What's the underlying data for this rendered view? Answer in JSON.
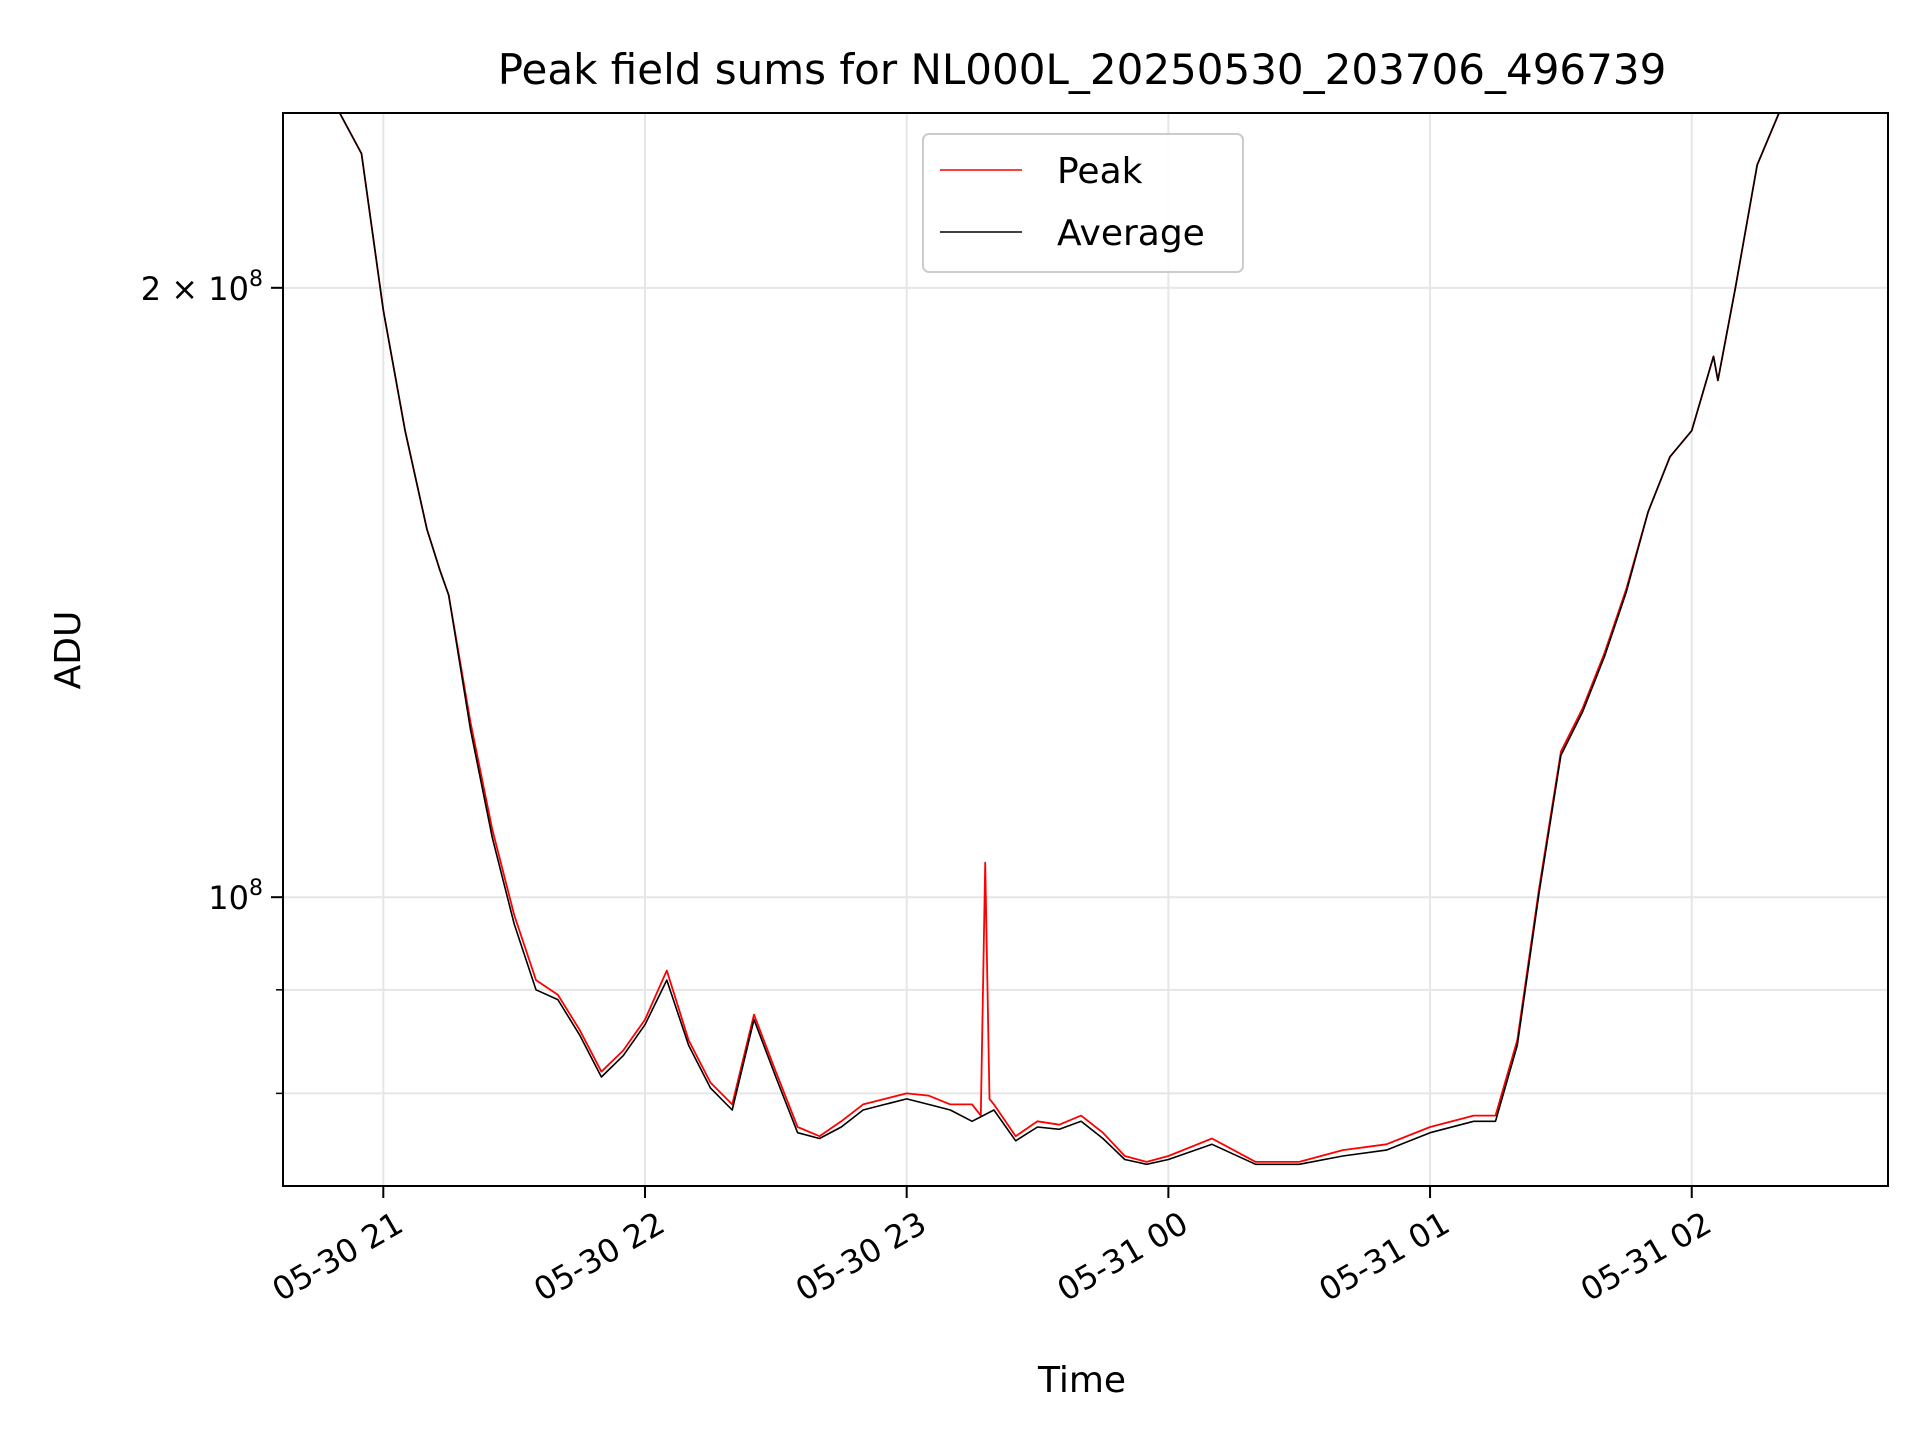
{
  "chart_data": {
    "type": "line",
    "title": "Peak field sums for NL000L_20250530_203706_496739",
    "xlabel": "Time",
    "ylabel": "ADU",
    "yscale": "log",
    "grid": true,
    "legend_placement": "upper-center",
    "xlim": [
      "2025-05-30 20:37",
      "2025-05-31 02:45"
    ],
    "ylim": [
      72000000,
      244000000
    ],
    "x_ticks": [
      {
        "value": "2025-05-30 21:00",
        "label": "05-30 21"
      },
      {
        "value": "2025-05-30 22:00",
        "label": "05-30 22"
      },
      {
        "value": "2025-05-30 23:00",
        "label": "05-30 23"
      },
      {
        "value": "2025-05-31 00:00",
        "label": "05-31 00"
      },
      {
        "value": "2025-05-31 01:00",
        "label": "05-31 01"
      },
      {
        "value": "2025-05-31 02:00",
        "label": "05-31 02"
      }
    ],
    "y_major_ticks": [
      {
        "value": 100000000,
        "base": "10",
        "exp": "8",
        "mantissa": ""
      },
      {
        "value": 200000000,
        "base": "10",
        "exp": "8",
        "mantissa": "2 × "
      }
    ],
    "y_minor_ticks": [
      80000000,
      90000000
    ],
    "series": [
      {
        "name": "Peak",
        "color": "#ff0000",
        "x": [
          "2025-05-30 20:37",
          "2025-05-30 20:50",
          "2025-05-30 20:55",
          "2025-05-30 21:00",
          "2025-05-30 21:05",
          "2025-05-30 21:10",
          "2025-05-30 21:13",
          "2025-05-30 21:15",
          "2025-05-30 21:20",
          "2025-05-30 21:25",
          "2025-05-30 21:30",
          "2025-05-30 21:35",
          "2025-05-30 21:40",
          "2025-05-30 21:45",
          "2025-05-30 21:50",
          "2025-05-30 21:55",
          "2025-05-30 22:00",
          "2025-05-30 22:05",
          "2025-05-30 22:10",
          "2025-05-30 22:15",
          "2025-05-30 22:20",
          "2025-05-30 22:25",
          "2025-05-30 22:30",
          "2025-05-30 22:35",
          "2025-05-30 22:40",
          "2025-05-30 22:45",
          "2025-05-30 22:50",
          "2025-05-30 22:55",
          "2025-05-30 23:00",
          "2025-05-30 23:05",
          "2025-05-30 23:10",
          "2025-05-30 23:15",
          "2025-05-30 23:17",
          "2025-05-30 23:18",
          "2025-05-30 23:19",
          "2025-05-30 23:20",
          "2025-05-30 23:25",
          "2025-05-30 23:30",
          "2025-05-30 23:35",
          "2025-05-30 23:40",
          "2025-05-30 23:45",
          "2025-05-30 23:50",
          "2025-05-30 23:55",
          "2025-05-31 00:00",
          "2025-05-31 00:10",
          "2025-05-31 00:20",
          "2025-05-31 00:30",
          "2025-05-31 00:40",
          "2025-05-31 00:50",
          "2025-05-31 01:00",
          "2025-05-31 01:10",
          "2025-05-31 01:15",
          "2025-05-31 01:20",
          "2025-05-31 01:25",
          "2025-05-31 01:30",
          "2025-05-31 01:35",
          "2025-05-31 01:40",
          "2025-05-31 01:45",
          "2025-05-31 01:50",
          "2025-05-31 01:55",
          "2025-05-31 02:00",
          "2025-05-31 02:05",
          "2025-05-31 02:06",
          "2025-05-31 02:10",
          "2025-05-31 02:15",
          "2025-05-31 02:20",
          "2025-05-31 02:45"
        ],
        "y": [
          244000000,
          244000000,
          233000000,
          195000000,
          170000000,
          152000000,
          145000000,
          141000000,
          122000000,
          108000000,
          98000000,
          91000000,
          89500000,
          86000000,
          82000000,
          84000000,
          87000000,
          92000000,
          85000000,
          81000000,
          79000000,
          87500000,
          82000000,
          77000000,
          76200000,
          77500000,
          79000000,
          79500000,
          80000000,
          79800000,
          79000000,
          79000000,
          78000000,
          104000000,
          79500000,
          79000000,
          76200000,
          77500000,
          77200000,
          78000000,
          76500000,
          74500000,
          74000000,
          74500000,
          76000000,
          74000000,
          74000000,
          75000000,
          75500000,
          77000000,
          78000000,
          78000000,
          85000000,
          101000000,
          118000000,
          124000000,
          132000000,
          142000000,
          155000000,
          165000000,
          170000000,
          185000000,
          180000000,
          200000000,
          230000000,
          244000000,
          244000000
        ]
      },
      {
        "name": "Average",
        "color": "#000000",
        "x": [
          "2025-05-30 20:37",
          "2025-05-30 20:50",
          "2025-05-30 20:55",
          "2025-05-30 21:00",
          "2025-05-30 21:05",
          "2025-05-30 21:10",
          "2025-05-30 21:13",
          "2025-05-30 21:15",
          "2025-05-30 21:20",
          "2025-05-30 21:25",
          "2025-05-30 21:30",
          "2025-05-30 21:35",
          "2025-05-30 21:40",
          "2025-05-30 21:45",
          "2025-05-30 21:50",
          "2025-05-30 21:55",
          "2025-05-30 22:00",
          "2025-05-30 22:05",
          "2025-05-30 22:10",
          "2025-05-30 22:15",
          "2025-05-30 22:20",
          "2025-05-30 22:25",
          "2025-05-30 22:30",
          "2025-05-30 22:35",
          "2025-05-30 22:40",
          "2025-05-30 22:45",
          "2025-05-30 22:50",
          "2025-05-30 22:55",
          "2025-05-30 23:00",
          "2025-05-30 23:05",
          "2025-05-30 23:10",
          "2025-05-30 23:15",
          "2025-05-30 23:20",
          "2025-05-30 23:25",
          "2025-05-30 23:30",
          "2025-05-30 23:35",
          "2025-05-30 23:40",
          "2025-05-30 23:45",
          "2025-05-30 23:50",
          "2025-05-30 23:55",
          "2025-05-31 00:00",
          "2025-05-31 00:10",
          "2025-05-31 00:20",
          "2025-05-31 00:30",
          "2025-05-31 00:40",
          "2025-05-31 00:50",
          "2025-05-31 01:00",
          "2025-05-31 01:10",
          "2025-05-31 01:15",
          "2025-05-31 01:20",
          "2025-05-31 01:25",
          "2025-05-31 01:30",
          "2025-05-31 01:35",
          "2025-05-31 01:40",
          "2025-05-31 01:45",
          "2025-05-31 01:50",
          "2025-05-31 01:55",
          "2025-05-31 02:00",
          "2025-05-31 02:05",
          "2025-05-31 02:06",
          "2025-05-31 02:10",
          "2025-05-31 02:15",
          "2025-05-31 02:20",
          "2025-05-31 02:45"
        ],
        "y": [
          244000000,
          244000000,
          233000000,
          195000000,
          170000000,
          152000000,
          145000000,
          141000000,
          121000000,
          107000000,
          97000000,
          90000000,
          89000000,
          85500000,
          81500000,
          83500000,
          86500000,
          91000000,
          84500000,
          80500000,
          78500000,
          87000000,
          81500000,
          76500000,
          76000000,
          77000000,
          78500000,
          79000000,
          79500000,
          79000000,
          78500000,
          77500000,
          78500000,
          75800000,
          77000000,
          76800000,
          77500000,
          76000000,
          74200000,
          73800000,
          74200000,
          75500000,
          73800000,
          73800000,
          74500000,
          75000000,
          76500000,
          77500000,
          77500000,
          84500000,
          100500000,
          117500000,
          123500000,
          131500000,
          141500000,
          155000000,
          165000000,
          170000000,
          185000000,
          180000000,
          200000000,
          230000000,
          244000000,
          244000000
        ]
      }
    ]
  }
}
